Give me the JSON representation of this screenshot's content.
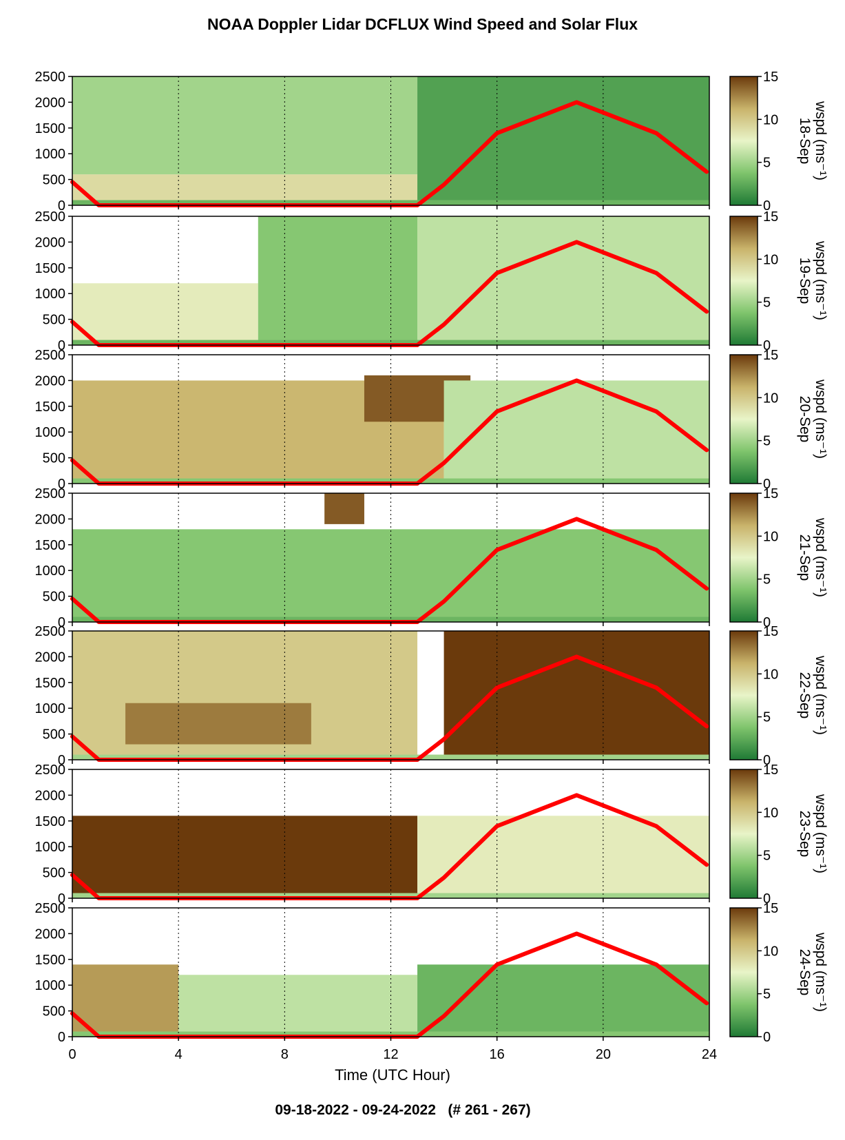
{
  "title": "NOAA Doppler Lidar DCFLUX Wind Speed and Solar Flux",
  "footer": "09-18-2022 - 09-24-2022   (# 261 - 267)",
  "chart_data": {
    "type": "heatmap",
    "xlabel": "Time (UTC Hour)",
    "xlim": [
      0,
      24
    ],
    "xticks": [
      "0",
      "4",
      "8",
      "12",
      "16",
      "20",
      "24"
    ],
    "ylim": [
      0,
      2500
    ],
    "yticks": [
      "0",
      "500",
      "1000",
      "1500",
      "2000",
      "2500"
    ],
    "colorbar": {
      "label": "wspd (ms⁻¹)",
      "ticks": [
        "0",
        "5",
        "10",
        "15"
      ],
      "range": [
        0,
        15
      ],
      "colors": [
        "#1f7a35",
        "#7fc46c",
        "#e8f4c8",
        "#c9b36a",
        "#6b3a0c"
      ]
    },
    "series_color": "#ff0000",
    "solar_curve": {
      "description": "solar flux, zero between ~1 and 13 UTC, peak near 19 UTC",
      "x": [
        0,
        1,
        13,
        14,
        16,
        19,
        22,
        23.9
      ],
      "y": [
        450,
        0,
        0,
        400,
        1400,
        2000,
        1400,
        650
      ]
    },
    "panels": [
      {
        "date": "18-Sep",
        "wind_bands": [
          {
            "x": [
              0,
              24
            ],
            "y": [
              0,
              100
            ],
            "wspd": 3
          },
          {
            "x": [
              0,
              13
            ],
            "y": [
              100,
              600
            ],
            "wspd": 9
          },
          {
            "x": [
              0,
              13
            ],
            "y": [
              600,
              2500
            ],
            "wspd": 5
          },
          {
            "x": [
              13,
              24
            ],
            "y": [
              100,
              2500
            ],
            "wspd": 2
          }
        ]
      },
      {
        "date": "19-Sep",
        "wind_bands": [
          {
            "x": [
              0,
              24
            ],
            "y": [
              0,
              100
            ],
            "wspd": 3
          },
          {
            "x": [
              0,
              7
            ],
            "y": [
              100,
              1200
            ],
            "wspd": 8
          },
          {
            "x": [
              7,
              13
            ],
            "y": [
              100,
              2500
            ],
            "wspd": 4
          },
          {
            "x": [
              13,
              24
            ],
            "y": [
              100,
              2500
            ],
            "wspd": 6
          }
        ]
      },
      {
        "date": "20-Sep",
        "wind_bands": [
          {
            "x": [
              0,
              24
            ],
            "y": [
              0,
              100
            ],
            "wspd": 4
          },
          {
            "x": [
              0,
              14
            ],
            "y": [
              100,
              2000
            ],
            "wspd": 11
          },
          {
            "x": [
              11,
              15
            ],
            "y": [
              1200,
              2100
            ],
            "wspd": 14
          },
          {
            "x": [
              14,
              24
            ],
            "y": [
              100,
              2000
            ],
            "wspd": 6
          }
        ]
      },
      {
        "date": "21-Sep",
        "wind_bands": [
          {
            "x": [
              0,
              24
            ],
            "y": [
              0,
              100
            ],
            "wspd": 3
          },
          {
            "x": [
              0,
              24
            ],
            "y": [
              100,
              1800
            ],
            "wspd": 4
          },
          {
            "x": [
              9.5,
              11
            ],
            "y": [
              1900,
              2500
            ],
            "wspd": 14
          }
        ]
      },
      {
        "date": "22-Sep",
        "wind_bands": [
          {
            "x": [
              0,
              24
            ],
            "y": [
              0,
              100
            ],
            "wspd": 5
          },
          {
            "x": [
              0,
              13
            ],
            "y": [
              100,
              2500
            ],
            "wspd": 10
          },
          {
            "x": [
              2,
              9
            ],
            "y": [
              300,
              1100
            ],
            "wspd": 13
          },
          {
            "x": [
              14,
              24
            ],
            "y": [
              100,
              2500
            ],
            "wspd": 15
          }
        ]
      },
      {
        "date": "23-Sep",
        "wind_bands": [
          {
            "x": [
              0,
              24
            ],
            "y": [
              0,
              100
            ],
            "wspd": 5
          },
          {
            "x": [
              0,
              13
            ],
            "y": [
              100,
              1600
            ],
            "wspd": 15
          },
          {
            "x": [
              13,
              24
            ],
            "y": [
              100,
              1600
            ],
            "wspd": 8
          }
        ]
      },
      {
        "date": "24-Sep",
        "wind_bands": [
          {
            "x": [
              0,
              24
            ],
            "y": [
              0,
              100
            ],
            "wspd": 4
          },
          {
            "x": [
              0,
              4
            ],
            "y": [
              100,
              1400
            ],
            "wspd": 12
          },
          {
            "x": [
              4,
              13
            ],
            "y": [
              100,
              1200
            ],
            "wspd": 6
          },
          {
            "x": [
              13,
              24
            ],
            "y": [
              100,
              1400
            ],
            "wspd": 3
          }
        ]
      }
    ]
  }
}
